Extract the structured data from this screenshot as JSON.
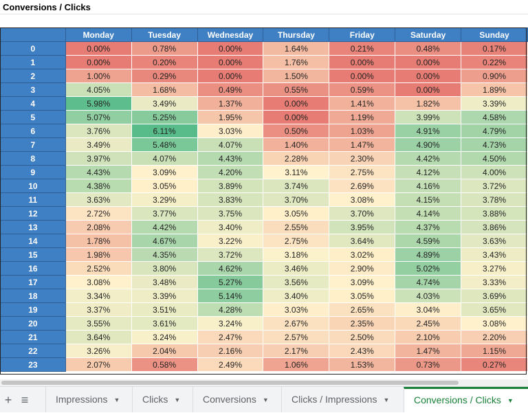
{
  "title": "Conversions / Clicks",
  "table": {
    "days": [
      "Monday",
      "Tuesday",
      "Wednesday",
      "Thursday",
      "Friday",
      "Saturday",
      "Sunday"
    ],
    "hours": [
      "0",
      "1",
      "2",
      "3",
      "4",
      "5",
      "6",
      "7",
      "8",
      "9",
      "10",
      "11",
      "12",
      "13",
      "14",
      "15",
      "16",
      "17",
      "18",
      "19",
      "20",
      "21",
      "22",
      "23"
    ],
    "cells": [
      [
        "0.00%",
        "0.78%",
        "0.00%",
        "1.64%",
        "0.21%",
        "0.48%",
        "0.17%"
      ],
      [
        "0.00%",
        "0.20%",
        "0.00%",
        "1.76%",
        "0.00%",
        "0.00%",
        "0.22%"
      ],
      [
        "1.00%",
        "0.29%",
        "0.00%",
        "1.50%",
        "0.00%",
        "0.00%",
        "0.90%"
      ],
      [
        "4.05%",
        "1.68%",
        "0.49%",
        "0.55%",
        "0.59%",
        "0.00%",
        "1.89%"
      ],
      [
        "5.98%",
        "3.49%",
        "1.37%",
        "0.00%",
        "1.41%",
        "1.82%",
        "3.39%"
      ],
      [
        "5.07%",
        "5.25%",
        "1.95%",
        "0.00%",
        "1.19%",
        "3.99%",
        "4.58%"
      ],
      [
        "3.76%",
        "6.11%",
        "3.03%",
        "0.50%",
        "1.03%",
        "4.91%",
        "4.79%"
      ],
      [
        "3.49%",
        "5.48%",
        "4.07%",
        "1.40%",
        "1.47%",
        "4.90%",
        "4.73%"
      ],
      [
        "3.97%",
        "4.07%",
        "4.43%",
        "2.28%",
        "2.30%",
        "4.42%",
        "4.50%"
      ],
      [
        "4.43%",
        "3.09%",
        "4.20%",
        "3.11%",
        "2.75%",
        "4.12%",
        "4.00%"
      ],
      [
        "4.38%",
        "3.05%",
        "3.89%",
        "3.74%",
        "2.69%",
        "4.16%",
        "3.72%"
      ],
      [
        "3.63%",
        "3.29%",
        "3.83%",
        "3.70%",
        "3.08%",
        "4.15%",
        "3.78%"
      ],
      [
        "2.72%",
        "3.77%",
        "3.75%",
        "3.05%",
        "3.70%",
        "4.14%",
        "3.88%"
      ],
      [
        "2.08%",
        "4.42%",
        "3.40%",
        "2.55%",
        "3.95%",
        "4.37%",
        "3.86%"
      ],
      [
        "1.78%",
        "4.67%",
        "3.22%",
        "2.75%",
        "3.64%",
        "4.59%",
        "3.63%"
      ],
      [
        "1.98%",
        "4.35%",
        "3.72%",
        "3.18%",
        "3.02%",
        "4.89%",
        "3.43%"
      ],
      [
        "2.52%",
        "3.80%",
        "4.62%",
        "3.46%",
        "2.90%",
        "5.02%",
        "3.27%"
      ],
      [
        "3.08%",
        "3.48%",
        "5.27%",
        "3.56%",
        "3.09%",
        "4.74%",
        "3.33%"
      ],
      [
        "3.34%",
        "3.39%",
        "5.14%",
        "3.40%",
        "3.05%",
        "4.03%",
        "3.69%"
      ],
      [
        "3.37%",
        "3.51%",
        "4.28%",
        "3.03%",
        "2.65%",
        "3.04%",
        "3.65%"
      ],
      [
        "3.55%",
        "3.61%",
        "3.24%",
        "2.67%",
        "2.35%",
        "2.45%",
        "3.08%"
      ],
      [
        "3.64%",
        "3.24%",
        "2.47%",
        "2.57%",
        "2.50%",
        "2.10%",
        "2.20%"
      ],
      [
        "3.26%",
        "2.04%",
        "2.16%",
        "2.17%",
        "2.43%",
        "1.47%",
        "1.15%"
      ],
      [
        "2.07%",
        "0.58%",
        "2.49%",
        "1.06%",
        "1.53%",
        "0.73%",
        "0.27%"
      ]
    ],
    "colors": {
      "low": "#e67c73",
      "mid": "#fff2cc",
      "high": "#57bb8a",
      "header": "#3f7fc3"
    }
  },
  "tabs": {
    "add_icon": "plus-icon",
    "list_icon": "hamburger-icon",
    "items": [
      {
        "label": "Impressions",
        "active": false
      },
      {
        "label": "Clicks",
        "active": false
      },
      {
        "label": "Conversions",
        "active": false
      },
      {
        "label": "Clicks / Impressions",
        "active": false
      },
      {
        "label": "Conversions / Clicks",
        "active": true
      }
    ]
  }
}
